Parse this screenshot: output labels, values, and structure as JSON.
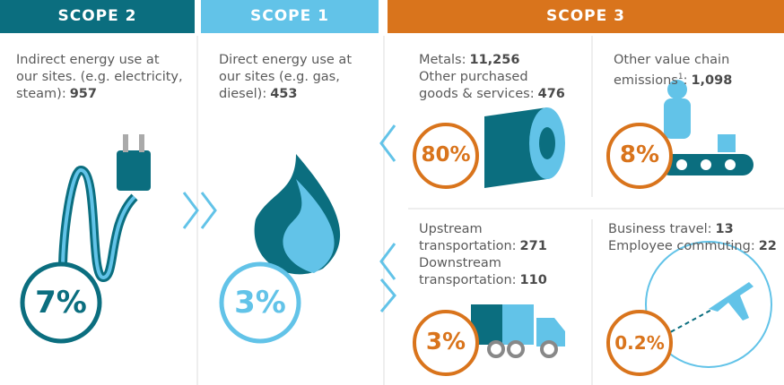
{
  "scopes": [
    {
      "title": "SCOPE 2",
      "blocks": [
        {
          "items": [
            {
              "lines": [
                "Indirect energy use at",
                "our sites. (e.g. electricity,",
                "steam):"
              ],
              "value": "957"
            }
          ],
          "percent": "7%"
        }
      ]
    },
    {
      "title": "SCOPE 1",
      "blocks": [
        {
          "items": [
            {
              "lines": [
                "Direct energy use at",
                "our sites (e.g. gas,",
                "diesel):"
              ],
              "value": "453"
            }
          ],
          "percent": "3%"
        }
      ]
    },
    {
      "title": "SCOPE 3",
      "blocks": [
        {
          "items": [
            {
              "lines": [
                "Metals:"
              ],
              "value": "11,256"
            },
            {
              "lines": [
                "Other purchased",
                "goods & services:"
              ],
              "value": "476"
            }
          ],
          "percent": "80%"
        },
        {
          "items": [
            {
              "lines": [
                "Other value chain",
                "emissions"
              ],
              "footnote": "1",
              "suffix": ":",
              "value": "1,098"
            }
          ],
          "percent": "8%"
        },
        {
          "items": [
            {
              "lines": [
                "Upstream",
                "transportation:"
              ],
              "value": "271"
            },
            {
              "lines": [
                "Downstream",
                "transportation:"
              ],
              "value": "110"
            }
          ],
          "percent": "3%"
        },
        {
          "items": [
            {
              "lines": [
                "Business travel:"
              ],
              "value": "13"
            },
            {
              "lines": [
                "Employee commuting:"
              ],
              "value": "22"
            }
          ],
          "percent": "0.2%"
        }
      ]
    }
  ]
}
